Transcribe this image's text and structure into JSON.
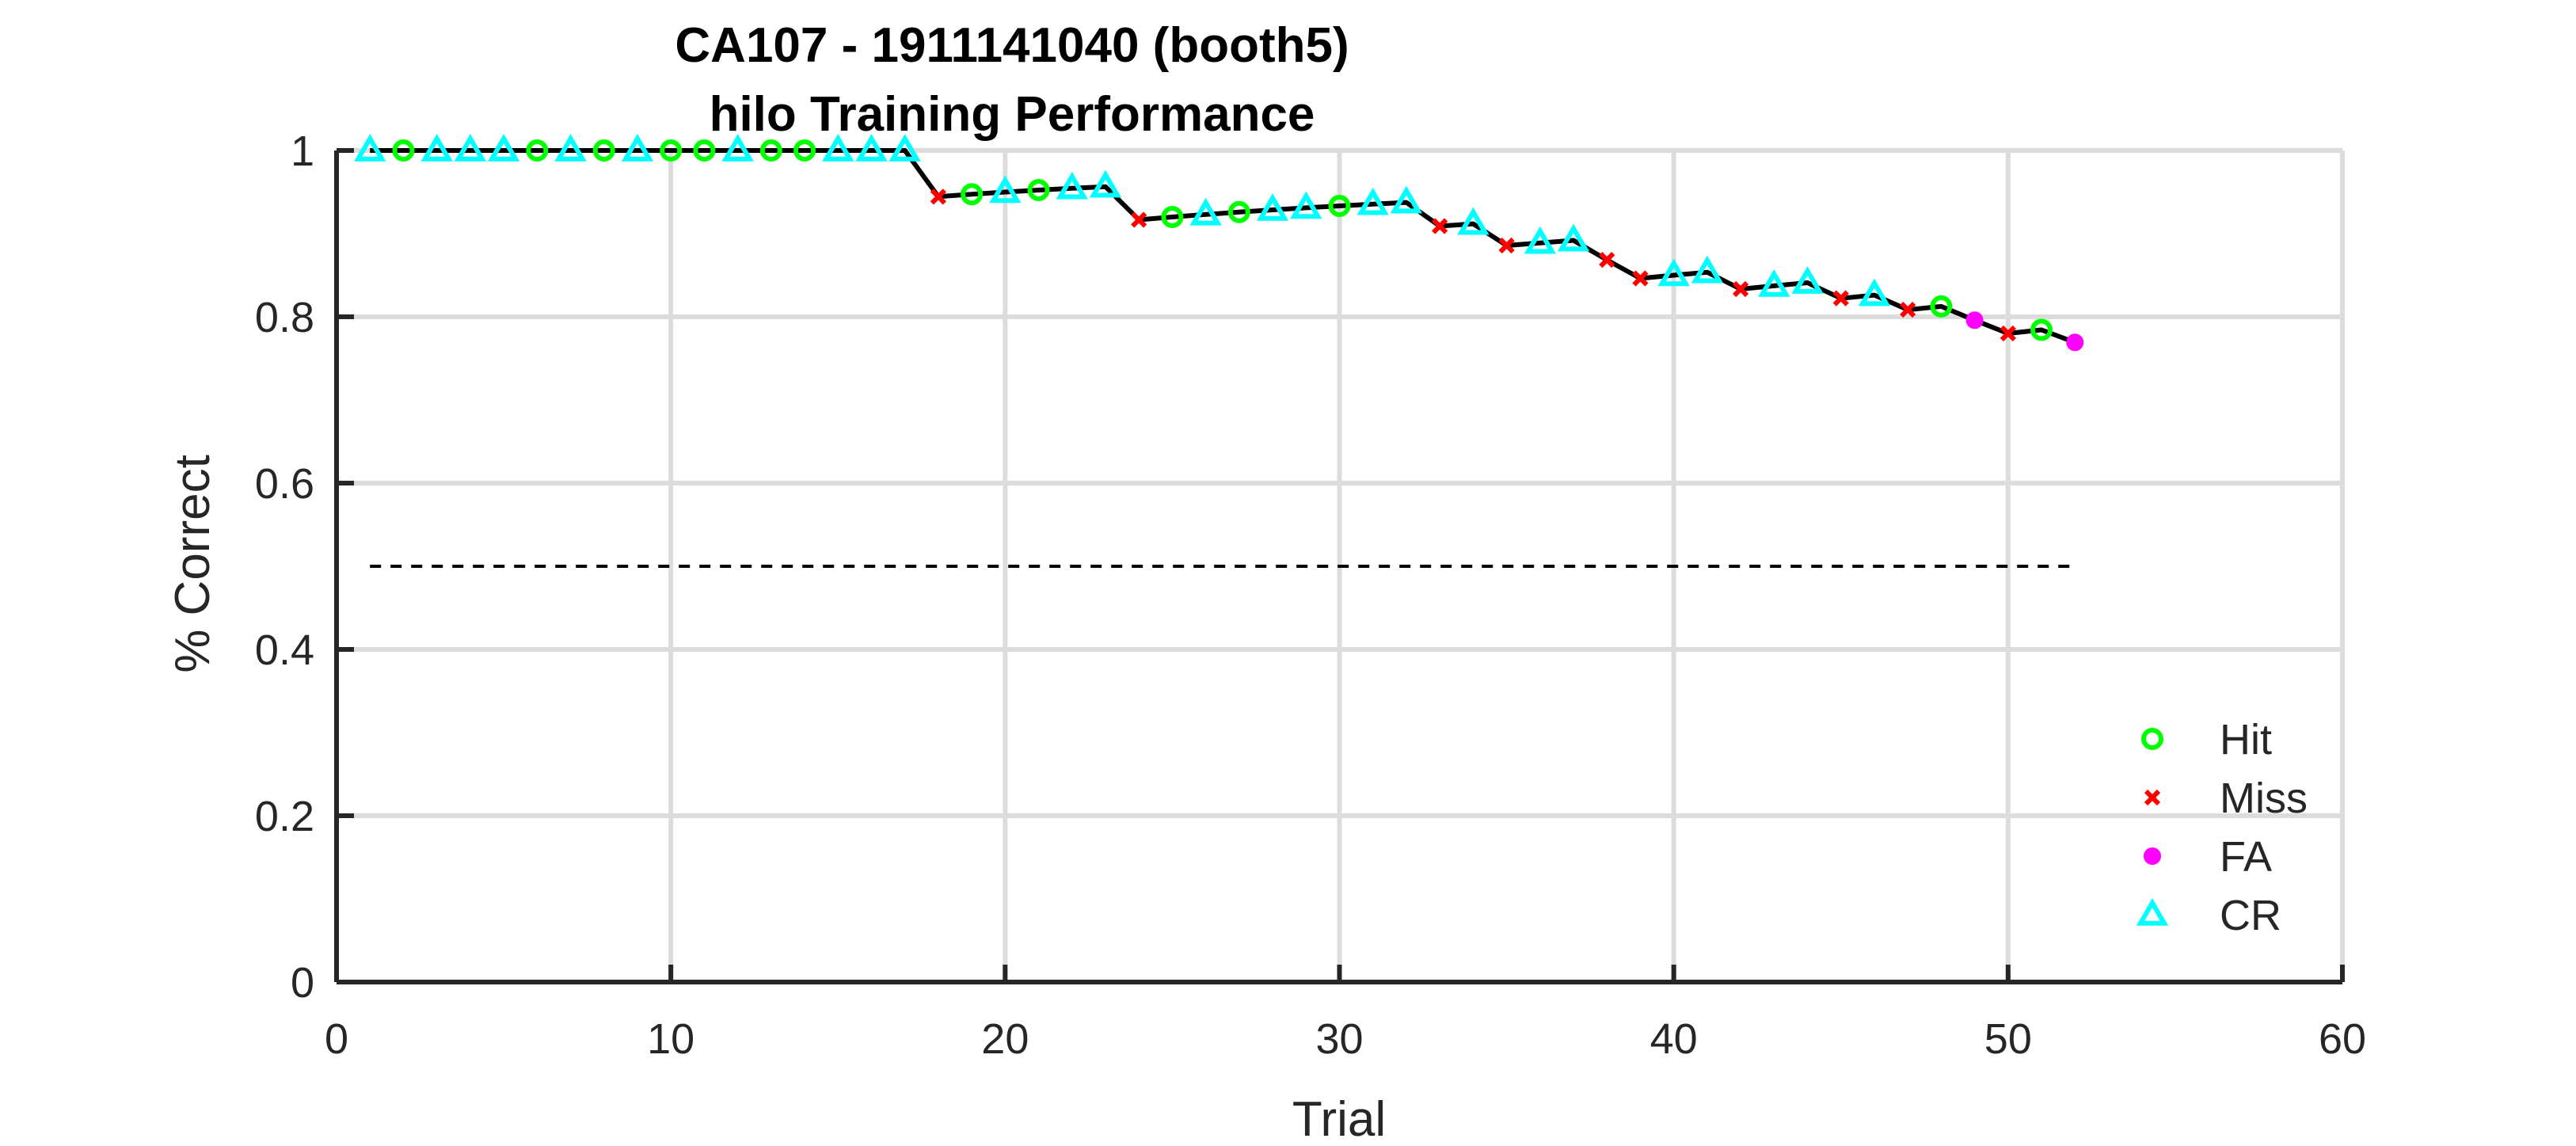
{
  "chart_data": {
    "type": "line",
    "title": "CA107 - 1911141040 (booth5)",
    "subtitle": "hilo Training Performance",
    "xlabel": "Trial",
    "ylabel": "% Correct",
    "xlim": [
      0,
      60
    ],
    "ylim": [
      0,
      1
    ],
    "x_ticks": [
      "0",
      "10",
      "20",
      "30",
      "40",
      "50",
      "60"
    ],
    "y_ticks": [
      "0",
      "0.2",
      "0.4",
      "0.6",
      "0.8",
      "1"
    ],
    "grid": true,
    "reference_line": {
      "y": 0.5,
      "x_range": [
        1,
        52
      ],
      "style": "dashed"
    },
    "legend_position": "bottom-right",
    "legend": [
      {
        "key": "hit",
        "label": "Hit",
        "color": "#00ff00",
        "marker": "open-circle"
      },
      {
        "key": "miss",
        "label": "Miss",
        "color": "#ff0000",
        "marker": "x"
      },
      {
        "key": "fa",
        "label": "FA",
        "color": "#ff00ff",
        "marker": "filled-circle"
      },
      {
        "key": "cr",
        "label": "CR",
        "color": "#00ffff",
        "marker": "open-triangle"
      }
    ],
    "line_color": "#000000",
    "trials": [
      1,
      2,
      3,
      4,
      5,
      6,
      7,
      8,
      9,
      10,
      11,
      12,
      13,
      14,
      15,
      16,
      17,
      18,
      19,
      20,
      21,
      22,
      23,
      24,
      25,
      26,
      27,
      28,
      29,
      30,
      31,
      32,
      33,
      34,
      35,
      36,
      37,
      38,
      39,
      40,
      41,
      42,
      43,
      44,
      45,
      46,
      47,
      48,
      49,
      50,
      51,
      52
    ],
    "outcomes": [
      "cr",
      "hit",
      "cr",
      "cr",
      "cr",
      "hit",
      "cr",
      "hit",
      "cr",
      "hit",
      "hit",
      "cr",
      "hit",
      "hit",
      "cr",
      "cr",
      "cr",
      "miss",
      "hit",
      "cr",
      "hit",
      "cr",
      "cr",
      "miss",
      "hit",
      "cr",
      "hit",
      "cr",
      "cr",
      "hit",
      "cr",
      "cr",
      "miss",
      "cr",
      "miss",
      "cr",
      "cr",
      "miss",
      "miss",
      "cr",
      "cr",
      "miss",
      "cr",
      "cr",
      "miss",
      "cr",
      "miss",
      "hit",
      "fa",
      "miss",
      "hit",
      "fa"
    ]
  }
}
